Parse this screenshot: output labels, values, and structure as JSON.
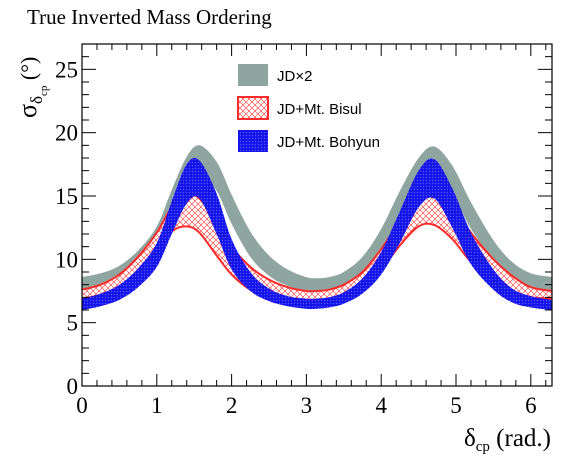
{
  "chart_data": {
    "type": "area",
    "title": "True Inverted Mass Ordering",
    "xlabel": {
      "main": "δ",
      "sub": "cp",
      "unit": " (rad.)"
    },
    "ylabel": {
      "main": "σ",
      "sub1": "δ",
      "sub2": "cp",
      "unit": " (°)"
    },
    "xlim": [
      0,
      6.2832
    ],
    "ylim": [
      0,
      27
    ],
    "xticks": [
      0,
      1,
      2,
      3,
      4,
      5,
      6
    ],
    "yticks": [
      0,
      5,
      10,
      15,
      20,
      25
    ],
    "legend_position": "top-center",
    "x": [
      0,
      0.25,
      0.5,
      0.75,
      1.0,
      1.2,
      1.4,
      1.57,
      1.8,
      2.0,
      2.25,
      2.5,
      2.75,
      3.0,
      3.14,
      3.3,
      3.5,
      3.75,
      4.0,
      4.25,
      4.5,
      4.71,
      4.95,
      5.2,
      5.5,
      5.75,
      6.0,
      6.2832
    ],
    "series": [
      {
        "name": "JD×2",
        "color": "#8fa5a0",
        "style": "solid",
        "lower": [
          7.4,
          7.6,
          8.1,
          9.0,
          10.8,
          13.6,
          16.2,
          16.9,
          15.4,
          12.8,
          10.2,
          8.7,
          7.9,
          7.5,
          7.4,
          7.5,
          7.9,
          8.8,
          10.6,
          13.5,
          16.2,
          16.9,
          15.2,
          12.4,
          9.9,
          8.4,
          7.7,
          7.4
        ],
        "upper": [
          8.6,
          8.9,
          9.5,
          10.7,
          12.6,
          15.5,
          18.1,
          19.0,
          17.7,
          15.1,
          12.2,
          10.3,
          9.2,
          8.6,
          8.5,
          8.6,
          9.0,
          10.2,
          12.4,
          15.4,
          18.0,
          18.9,
          17.4,
          14.5,
          11.5,
          9.8,
          8.9,
          8.6
        ]
      },
      {
        "name": "JD+Mt. Bisul",
        "color": "#ff2a2a",
        "style": "hatched",
        "lower": [
          6.9,
          7.2,
          7.8,
          8.9,
          10.6,
          12.2,
          12.6,
          12.1,
          10.3,
          8.8,
          7.6,
          7.0,
          6.6,
          6.5,
          6.5,
          6.6,
          6.9,
          7.7,
          9.2,
          11.1,
          12.6,
          12.7,
          11.6,
          9.8,
          8.3,
          7.4,
          7.0,
          6.9
        ],
        "upper": [
          7.6,
          8.0,
          8.8,
          10.2,
          12.1,
          14.1,
          15.0,
          14.8,
          12.9,
          11.0,
          9.4,
          8.4,
          7.8,
          7.5,
          7.5,
          7.6,
          8.0,
          9.0,
          10.8,
          13.0,
          14.9,
          15.2,
          14.2,
          12.1,
          10.0,
          8.7,
          7.8,
          7.5
        ]
      },
      {
        "name": "JD+Mt. Bohyun",
        "color": "#1515ee",
        "style": "dense",
        "lower": [
          6.0,
          6.3,
          6.8,
          7.8,
          9.4,
          12.0,
          14.4,
          14.8,
          12.0,
          9.2,
          7.5,
          6.7,
          6.3,
          6.1,
          6.1,
          6.2,
          6.5,
          7.3,
          8.8,
          11.3,
          14.1,
          14.8,
          12.5,
          9.6,
          7.6,
          6.6,
          6.2,
          6.0
        ],
        "upper": [
          6.9,
          7.3,
          8.0,
          9.3,
          11.3,
          14.6,
          17.5,
          17.8,
          15.2,
          11.6,
          9.0,
          7.7,
          7.1,
          6.9,
          6.9,
          7.0,
          7.4,
          8.5,
          10.6,
          13.8,
          17.0,
          17.9,
          15.6,
          12.1,
          9.2,
          7.7,
          7.1,
          6.8
        ]
      }
    ]
  }
}
